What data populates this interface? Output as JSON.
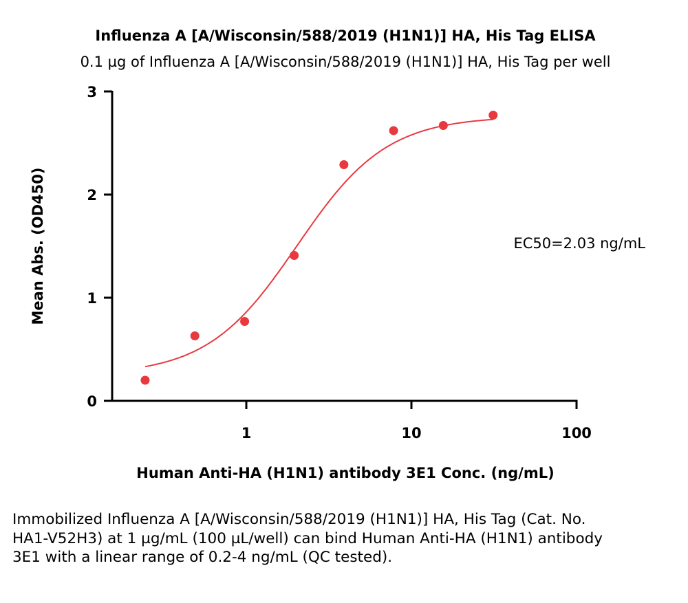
{
  "chart_data": {
    "type": "scatter",
    "title": "Influenza A [A/Wisconsin/588/2019 (H1N1)] HA, His Tag ELISA",
    "subtitle": "0.1 µg of Influenza A [A/Wisconsin/588/2019 (H1N1)] HA, His Tag per well",
    "xlabel": "Human Anti-HA (H1N1) antibody 3E1 Conc. (ng/mL)",
    "ylabel": "Mean Abs. (OD450)",
    "x_scale": "log",
    "xlim": [
      0.1,
      100
    ],
    "ylim": [
      0,
      3
    ],
    "x_ticks": [
      "1",
      "10",
      "100"
    ],
    "y_ticks": [
      "0",
      "1",
      "2",
      "3"
    ],
    "grid": false,
    "color": "#e8393f",
    "points": {
      "x": [
        0.244,
        0.488,
        0.977,
        1.95,
        3.9,
        7.8,
        15.6,
        31.25
      ],
      "y": [
        0.2,
        0.63,
        0.77,
        1.41,
        2.29,
        2.62,
        2.67,
        2.77
      ]
    },
    "fit": {
      "model": "4PL",
      "bottom": 0.25,
      "top": 2.76,
      "ec50": 2.03,
      "hill": 1.6
    },
    "annotation": "EC50=2.03 ng/mL"
  },
  "caption": "Immobilized Influenza A [A/Wisconsin/588/2019 (H1N1)] HA, His Tag (Cat. No. HA1-V52H3) at 1 µg/mL (100 µL/well) can bind Human Anti-HA (H1N1) antibody 3E1 with a linear range of 0.2-4 ng/mL (QC tested)."
}
